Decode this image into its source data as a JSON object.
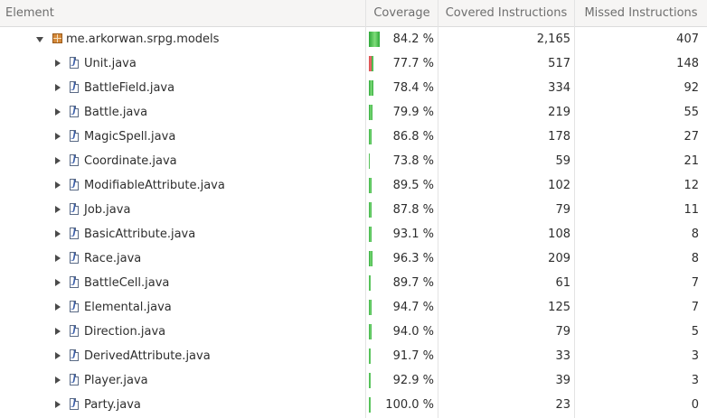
{
  "columns": {
    "element": "Element",
    "coverage": "Coverage",
    "covered": "Covered Instructions",
    "missed": "Missed Instructions"
  },
  "rows": [
    {
      "name": "me.arkorwan.srpg.models",
      "kind": "package",
      "expanded": true,
      "coverage": "84.2 %",
      "covered_fraction": 0.842,
      "bar_total": 2572,
      "covered": "2,165",
      "missed": "407"
    },
    {
      "name": "Unit.java",
      "kind": "java",
      "expanded": false,
      "coverage": "77.7 %",
      "covered_fraction": 0.777,
      "bar_total": 665,
      "covered": "517",
      "missed": "148"
    },
    {
      "name": "BattleField.java",
      "kind": "java",
      "expanded": false,
      "coverage": "78.4 %",
      "covered_fraction": 0.784,
      "bar_total": 426,
      "covered": "334",
      "missed": "92"
    },
    {
      "name": "Battle.java",
      "kind": "java",
      "expanded": false,
      "coverage": "79.9 %",
      "covered_fraction": 0.799,
      "bar_total": 274,
      "covered": "219",
      "missed": "55"
    },
    {
      "name": "MagicSpell.java",
      "kind": "java",
      "expanded": false,
      "coverage": "86.8 %",
      "covered_fraction": 0.868,
      "bar_total": 205,
      "covered": "178",
      "missed": "27"
    },
    {
      "name": "Coordinate.java",
      "kind": "java",
      "expanded": false,
      "coverage": "73.8 %",
      "covered_fraction": 0.738,
      "bar_total": 80,
      "covered": "59",
      "missed": "21"
    },
    {
      "name": "ModifiableAttribute.java",
      "kind": "java",
      "expanded": false,
      "coverage": "89.5 %",
      "covered_fraction": 0.895,
      "bar_total": 114,
      "covered": "102",
      "missed": "12"
    },
    {
      "name": "Job.java",
      "kind": "java",
      "expanded": false,
      "coverage": "87.8 %",
      "covered_fraction": 0.878,
      "bar_total": 90,
      "covered": "79",
      "missed": "11"
    },
    {
      "name": "BasicAttribute.java",
      "kind": "java",
      "expanded": false,
      "coverage": "93.1 %",
      "covered_fraction": 0.931,
      "bar_total": 116,
      "covered": "108",
      "missed": "8"
    },
    {
      "name": "Race.java",
      "kind": "java",
      "expanded": false,
      "coverage": "96.3 %",
      "covered_fraction": 0.963,
      "bar_total": 217,
      "covered": "209",
      "missed": "8"
    },
    {
      "name": "BattleCell.java",
      "kind": "java",
      "expanded": false,
      "coverage": "89.7 %",
      "covered_fraction": 0.897,
      "bar_total": 68,
      "covered": "61",
      "missed": "7"
    },
    {
      "name": "Elemental.java",
      "kind": "java",
      "expanded": false,
      "coverage": "94.7 %",
      "covered_fraction": 0.947,
      "bar_total": 132,
      "covered": "125",
      "missed": "7"
    },
    {
      "name": "Direction.java",
      "kind": "java",
      "expanded": false,
      "coverage": "94.0 %",
      "covered_fraction": 0.94,
      "bar_total": 84,
      "covered": "79",
      "missed": "5"
    },
    {
      "name": "DerivedAttribute.java",
      "kind": "java",
      "expanded": false,
      "coverage": "91.7 %",
      "covered_fraction": 0.917,
      "bar_total": 36,
      "covered": "33",
      "missed": "3"
    },
    {
      "name": "Player.java",
      "kind": "java",
      "expanded": false,
      "coverage": "92.9 %",
      "covered_fraction": 0.929,
      "bar_total": 42,
      "covered": "39",
      "missed": "3"
    },
    {
      "name": "Party.java",
      "kind": "java",
      "expanded": false,
      "coverage": "100.0 %",
      "covered_fraction": 1.0,
      "bar_total": 23,
      "covered": "23",
      "missed": "0"
    }
  ],
  "colors": {
    "covered_bar": "#2fa83a",
    "missed_bar": "#d23a3a",
    "header_bg": "#f6f5f4"
  }
}
